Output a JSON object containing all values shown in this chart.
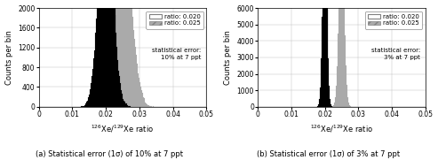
{
  "ratio1": 0.02,
  "ratio2": 0.025,
  "panel_a": {
    "sigma_pct": 0.1,
    "ylim": [
      0,
      2000
    ],
    "yticks": [
      0,
      400,
      800,
      1200,
      1600,
      2000
    ],
    "annotation": "statistical error:\n10% at 7 ppt",
    "fig_caption": "(a) Statistical error (1σ) of 10% at 7 ppt"
  },
  "panel_b": {
    "sigma_pct": 0.03,
    "ylim": [
      0,
      6000
    ],
    "yticks": [
      0,
      1000,
      2000,
      3000,
      4000,
      5000,
      6000
    ],
    "annotation": "statistical error:\n3% at 7 ppt",
    "fig_caption": "(b) Statistical error (1σ) of 3% at 7 ppt"
  },
  "xlim": [
    0,
    0.05
  ],
  "xticks": [
    0,
    0.01,
    0.02,
    0.03,
    0.04,
    0.05
  ],
  "xlabel": "$^{126}$Xe/$^{129}$Xe ratio",
  "ylabel": "Counts per bin",
  "n_samples": 100000,
  "n_bins": 200,
  "color_ratio1": "black",
  "color_ratio2": "#aaaaaa",
  "hatch_ratio2": "////",
  "legend_ratio1": "ratio: 0.020",
  "legend_ratio2": "ratio: 0.025"
}
